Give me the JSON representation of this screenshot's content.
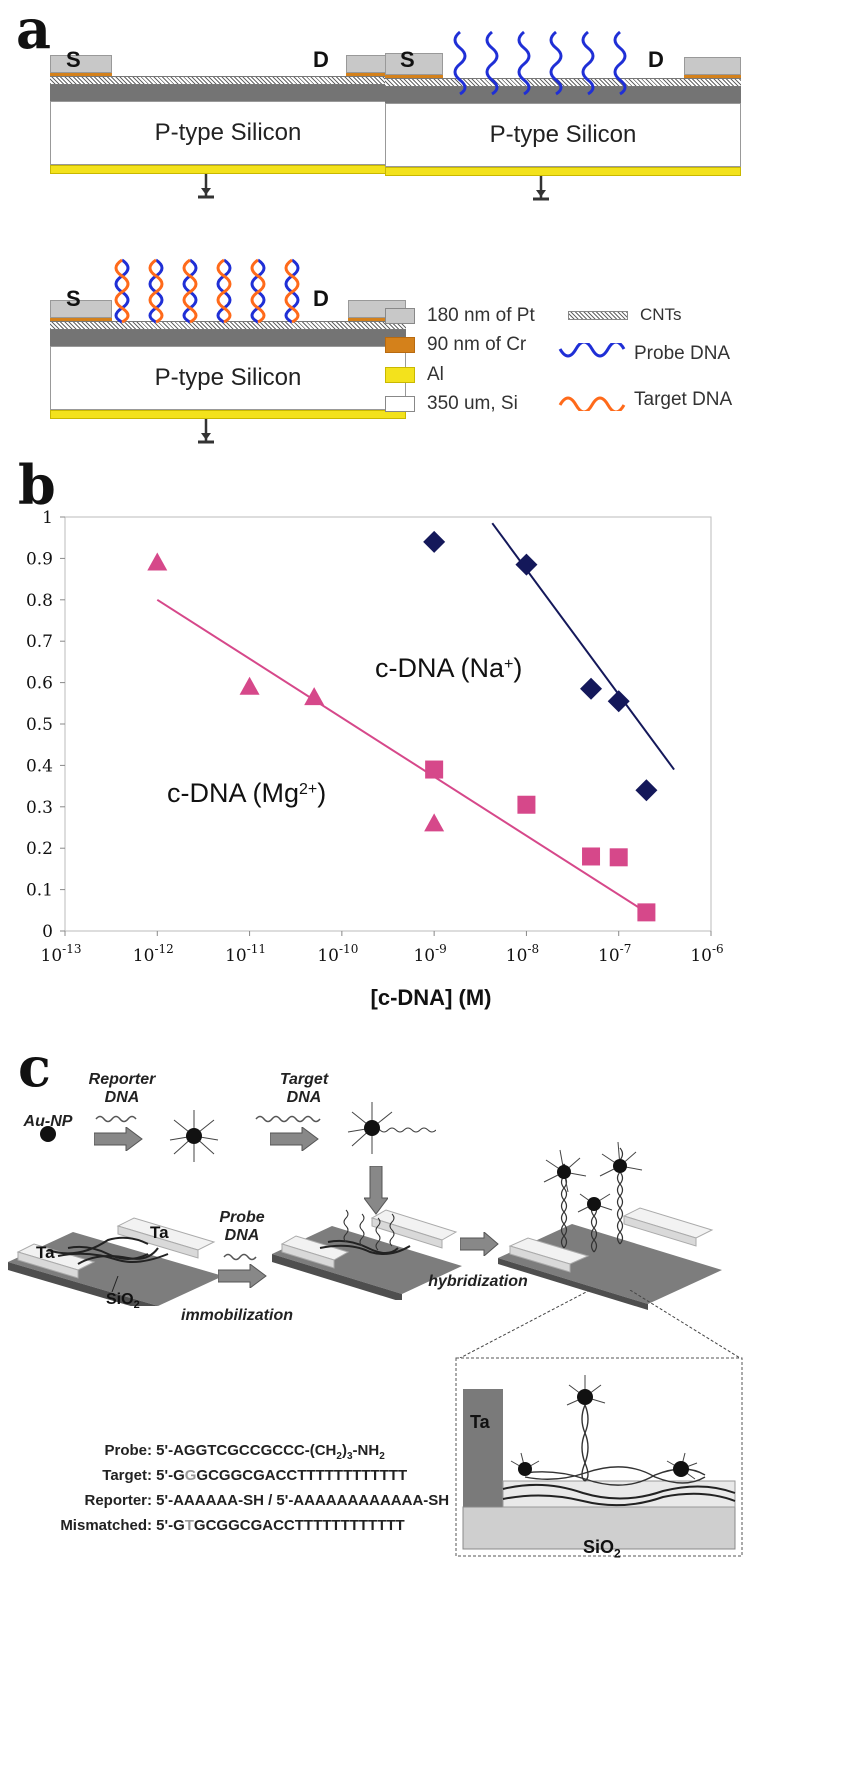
{
  "panels": {
    "a": "a",
    "b": "b",
    "c": "c"
  },
  "panel_a": {
    "source_label": "S",
    "drain_label": "D",
    "substrate_label": "P-type Silicon",
    "legend": {
      "pt": "180 nm of Pt",
      "cr": "90 nm of Cr",
      "al": "Al",
      "si": "350 um, Si",
      "cnts": "CNTs",
      "probe": "Probe DNA",
      "target": "Target DNA"
    },
    "colors": {
      "pt": "#c8c8c8",
      "cr": "#d4811b",
      "al": "#f3e21c",
      "probe": "#1f2fd6",
      "target": "#ff6a1a"
    }
  },
  "chart_data": {
    "type": "scatter",
    "x_scale": "log",
    "xlabel": "[c-DNA] (M)",
    "ylabel": "",
    "xlim_exp": [
      -13,
      -6
    ],
    "ylim": [
      0,
      1
    ],
    "x_tick_exponents": [
      "-13",
      "-12",
      "-11",
      "-10",
      "-9",
      "-8",
      "-7",
      "-6"
    ],
    "y_ticks": [
      "0",
      "0.1",
      "0.2",
      "0.3",
      "0.4",
      "0.5",
      "0.6",
      "0.7",
      "0.8",
      "0.9",
      "1"
    ],
    "series": [
      {
        "name": "c-DNA (Na+)",
        "label_main": "c-DNA (Na",
        "label_sup": "+",
        "label_tail": ")",
        "marker": "diamond",
        "color": "#14185a",
        "points": [
          [
            -9,
            0.94
          ],
          [
            -8,
            0.885
          ],
          [
            -7.3,
            0.585
          ],
          [
            -7,
            0.555
          ],
          [
            -6.7,
            0.34
          ]
        ],
        "fit": [
          [
            -8.37,
            0.985
          ],
          [
            -6.4,
            0.39
          ]
        ]
      },
      {
        "name": "c-DNA (Mg2+)",
        "label_main": "c-DNA (Mg",
        "label_sup": "2+",
        "label_tail": ")",
        "marker": "triangle",
        "color": "#d6488a",
        "points": [
          [
            -12,
            0.89
          ],
          [
            -11,
            0.59
          ],
          [
            -10.3,
            0.565
          ],
          [
            -9,
            0.26
          ]
        ],
        "fit": [
          [
            -12,
            0.8
          ],
          [
            -6.7,
            0.045
          ]
        ]
      },
      {
        "name": "c-DNA (Mg2+) squares",
        "marker": "square",
        "color": "#d6488a",
        "points": [
          [
            -9,
            0.39
          ],
          [
            -8,
            0.305
          ],
          [
            -7.3,
            0.18
          ],
          [
            -7,
            0.178
          ],
          [
            -6.7,
            0.045
          ]
        ]
      }
    ]
  },
  "panel_c": {
    "au_np": "Au-NP",
    "reporter_dna": "Reporter\nDNA",
    "target_dna": "Target\nDNA",
    "probe_dna": "Probe\nDNA",
    "ta_left": "Ta",
    "ta_right": "Ta",
    "sio2_main": "SiO",
    "sio2_sub": "2",
    "immobilization": "immobilization",
    "hybridization": "hybridization",
    "inset_ta": "Ta",
    "inset_sio2_main": "SiO",
    "inset_sio2_sub": "2",
    "sequences": [
      {
        "label": "Probe:",
        "pre": "5'-AGGTCGCCGCCC-(CH",
        "sub": "2",
        "mid": ")",
        "sub2": "3",
        "post": "-NH",
        "sub3": "2",
        "grey": "",
        "tail": ""
      },
      {
        "label": "Target:",
        "pre": "5'-G",
        "grey": "G",
        "tail": "GCGGCGACCTTTTTTTTTTTT"
      },
      {
        "label": "Reporter:",
        "pre": "5'-AAAAAA-SH / 5'-AAAAAAAAAAAA-SH",
        "grey": "",
        "tail": ""
      },
      {
        "label": "Mismatched:",
        "pre": "5'-G",
        "grey": "T",
        "tail": "GCGGCGACCTTTTTTTTTTTT"
      }
    ]
  }
}
